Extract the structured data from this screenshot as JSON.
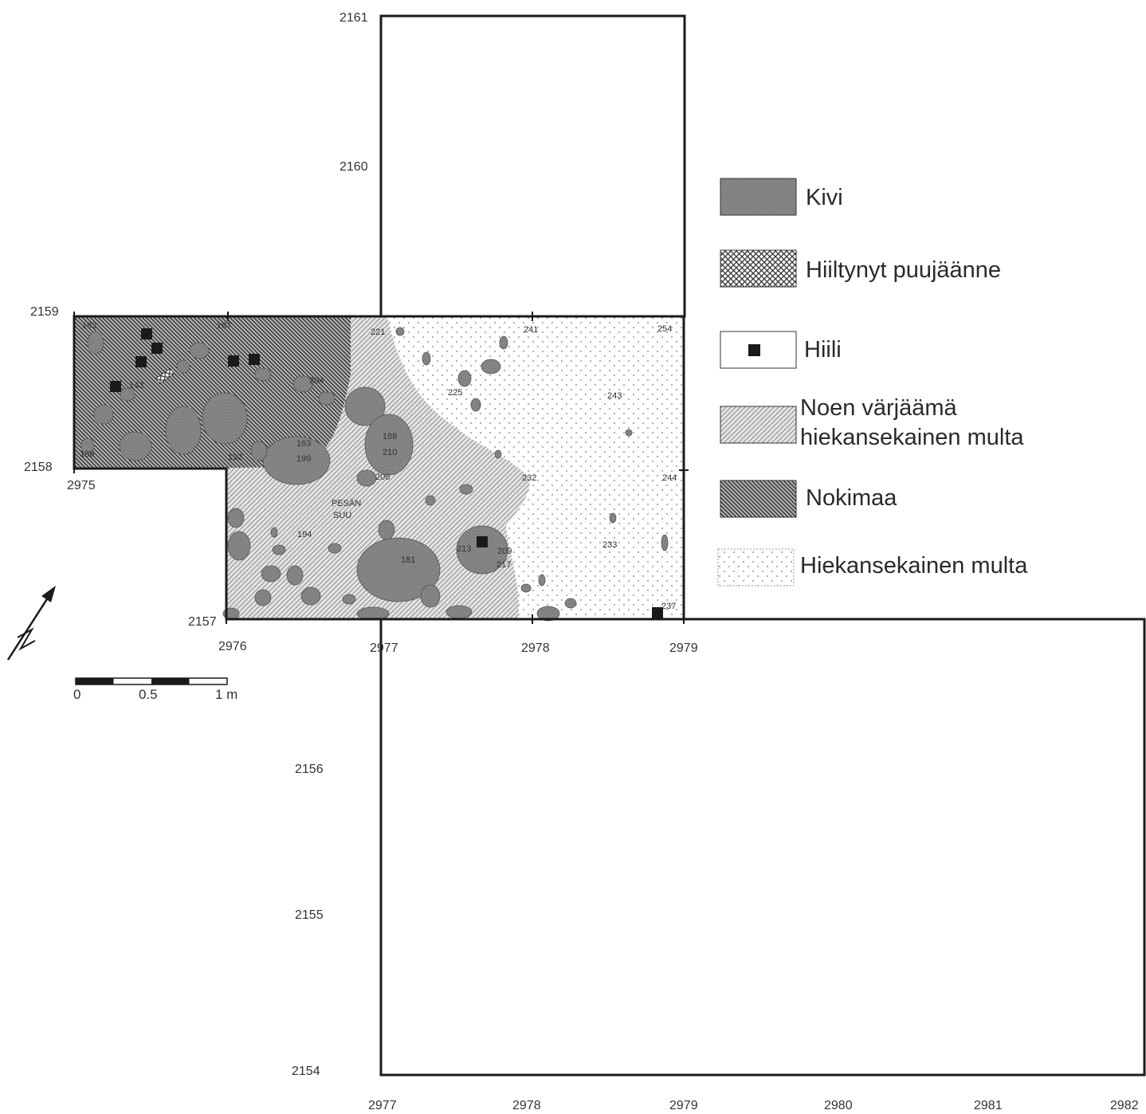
{
  "coords": {
    "y_2161": "2161",
    "y_2160": "2160",
    "y_2159": "2159",
    "y_2158": "2158",
    "x_2975": "2975",
    "y_2157": "2157",
    "x_2976": "2976",
    "x_2977": "2977",
    "x_2978": "2978",
    "x_2979": "2979",
    "y_2156": "2156",
    "y_2155": "2155",
    "y_2154": "2154",
    "bx_2977": "2977",
    "bx_2978": "2978",
    "bx_2979": "2979",
    "bx_2980": "2980",
    "bx_2981": "2981",
    "bx_2982": "2982"
  },
  "legend": {
    "kivi": "Kivi",
    "hiiltynyt": "Hiiltynyt puujäänne",
    "hiili": "Hiili",
    "noen_line1": "Noen värjäämä",
    "noen_line2": "hiekansekainen multa",
    "nokimaa": "Nokimaa",
    "hiekansekainen": "Hiekansekainen multa"
  },
  "scalebar": {
    "zero": "0",
    "half": "0.5",
    "one": "1 m"
  },
  "features": {
    "f192a": "192",
    "f197": "197",
    "f221": "221",
    "f241": "241",
    "f254": "254",
    "f142": "142",
    "f204": "204",
    "f225": "225",
    "f243": "243",
    "f188": "188",
    "f210": "210",
    "f163": "163",
    "f199": "199",
    "f192b": "192",
    "f186": "186",
    "f206": "206",
    "f232": "232",
    "f244": "244",
    "pesan": "PESÄN",
    "suu": "SUU",
    "f194": "194",
    "f213": "213",
    "f209": "209",
    "f217": "217",
    "f181": "181",
    "f233": "233",
    "f237": "237"
  }
}
